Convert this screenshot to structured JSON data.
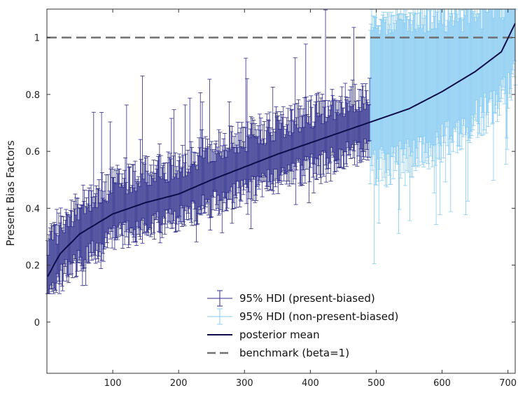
{
  "chart_data": {
    "type": "errorbar",
    "xlabel": "",
    "ylabel": "Present Bias Factors",
    "xlim": [
      0,
      711
    ],
    "ylim": [
      -0.18,
      1.1
    ],
    "n_participants": 711,
    "n_present_biased": 490,
    "xticks": [
      100,
      200,
      300,
      400,
      500,
      600,
      700
    ],
    "yticks": [
      0,
      0.2,
      0.4,
      0.6,
      0.8,
      1
    ],
    "ytick_labels": [
      "0",
      "0.2",
      "0.4",
      "0.6",
      "0.8",
      "1"
    ],
    "grid": false,
    "legend_position": "bottom-center",
    "series": [
      {
        "name": "95% HDI (present-biased)",
        "kind": "errorbar",
        "color": "#2e2e8c",
        "x_range": [
          1,
          490
        ]
      },
      {
        "name": "95% HDI (non-present-biased)",
        "kind": "errorbar",
        "color": "#87cbf2",
        "x_range": [
          491,
          711
        ]
      },
      {
        "name": "posterior mean",
        "kind": "line",
        "color": "#0d0d4a",
        "key_points": [
          [
            1,
            0.16
          ],
          [
            20,
            0.24
          ],
          [
            50,
            0.31
          ],
          [
            100,
            0.38
          ],
          [
            150,
            0.42
          ],
          [
            200,
            0.45
          ],
          [
            250,
            0.5
          ],
          [
            300,
            0.545
          ],
          [
            350,
            0.59
          ],
          [
            400,
            0.63
          ],
          [
            450,
            0.67
          ],
          [
            500,
            0.71
          ],
          [
            550,
            0.75
          ],
          [
            600,
            0.81
          ],
          [
            650,
            0.88
          ],
          [
            690,
            0.95
          ],
          [
            711,
            1.05
          ]
        ]
      },
      {
        "name": "benchmark (beta=1)",
        "kind": "hline",
        "color": "#707070",
        "y": 1
      }
    ]
  }
}
